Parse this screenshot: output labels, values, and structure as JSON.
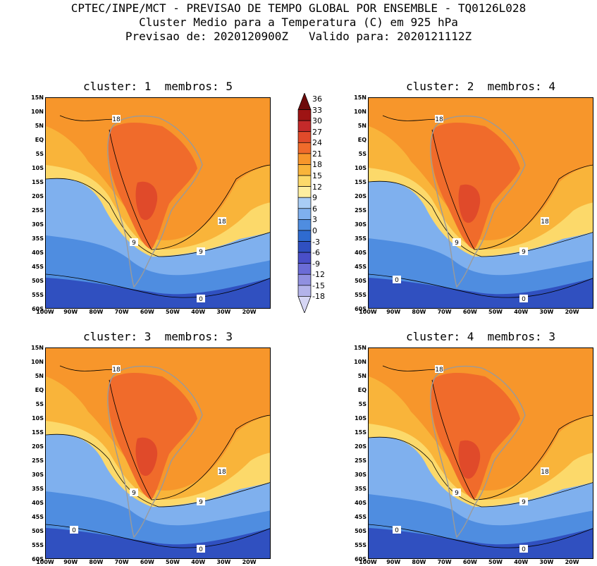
{
  "header": {
    "line1": "CPTEC/INPE/MCT - PREVISAO DE TEMPO GLOBAL POR ENSEMBLE - TQ0126L028",
    "line2": "Cluster Medio para a Temperatura (C) em 925 hPa",
    "line3": "Previsao de: 2020120900Z   Valido para: 2020121112Z"
  },
  "panels": [
    {
      "title": "cluster: 1  membros: 5"
    },
    {
      "title": "cluster: 2  membros: 4"
    },
    {
      "title": "cluster: 3  membros: 3"
    },
    {
      "title": "cluster: 4  membros: 3"
    }
  ],
  "map_axes": {
    "lat_labels": [
      "15N",
      "10N",
      "5N",
      "EQ",
      "5S",
      "10S",
      "15S",
      "20S",
      "25S",
      "30S",
      "35S",
      "40S",
      "45S",
      "50S",
      "55S",
      "60S"
    ],
    "lon_labels": [
      "100W",
      "90W",
      "80W",
      "70W",
      "60W",
      "50W",
      "40W",
      "30W",
      "20W"
    ]
  },
  "colorbar": {
    "labels": [
      "36",
      "33",
      "30",
      "27",
      "24",
      "21",
      "18",
      "15",
      "12",
      "9",
      "6",
      "3",
      "0",
      "-3",
      "-6",
      "-9",
      "-12",
      "-15",
      "-18"
    ],
    "colors": [
      "#6e0a0a",
      "#9e1414",
      "#c42a2a",
      "#e04a2a",
      "#f06b2b",
      "#f7962b",
      "#f9b43a",
      "#fcd96a",
      "#fdeea0",
      "#a9cdf5",
      "#7fb0ee",
      "#4f8de0",
      "#2f6bd0",
      "#3050c0",
      "#4a4fc8",
      "#6b6cd6",
      "#9090e0",
      "#b3b3ea",
      "#d6d6f4"
    ]
  },
  "contour_labels": {
    "p1": [
      "18",
      "18",
      "9",
      "9",
      "0"
    ],
    "p2": [
      "18",
      "18",
      "9",
      "9",
      "0",
      "0"
    ],
    "p3": [
      "18",
      "18",
      "9",
      "9",
      "0",
      "0"
    ],
    "p4": [
      "18",
      "18",
      "9",
      "9",
      "0",
      "0"
    ]
  },
  "map_colors": {
    "warm_ocean": "#f7962b",
    "hot_land": "#f06b2b",
    "mild": "#f9b43a",
    "cool": "#fcd96a",
    "cold": "#7fb0ee",
    "colder": "#4f8de0",
    "coldest": "#3050c0"
  }
}
